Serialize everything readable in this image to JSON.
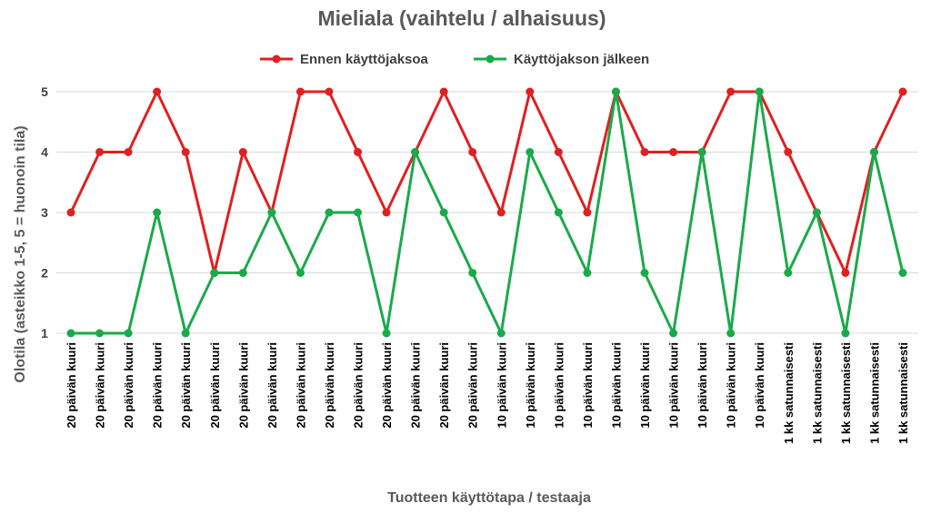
{
  "chart_data": {
    "type": "line",
    "title": "Mieliala (vaihtelu / alhaisuus)",
    "xlabel": "Tuotteen käyttötapa / testaaja",
    "ylabel": "Olotila (asteikko 1-5, 5 = huonoin tila)",
    "ylim": [
      1,
      5
    ],
    "yticks": [
      1,
      2,
      3,
      4,
      5
    ],
    "grid": true,
    "legend": "top",
    "categories": [
      "20 päivän kuuri",
      "20 päivän kuuri",
      "20 päivän kuuri",
      "20 päivän kuuri",
      "20 päivän kuuri",
      "20 päivän kuuri",
      "20 päivän kuuri",
      "20 päivän kuuri",
      "20 päivän kuuri",
      "20 päivän kuuri",
      "20 päivän kuuri",
      "20 päivän kuuri",
      "20 päivän kuuri",
      "20 päivän kuuri",
      "20 päivän kuuri",
      "10 päivän kuuri",
      "10 päivän kuuri",
      "10 päivän kuuri",
      "10 päivän kuuri",
      "10 päivän kuuri",
      "10 päivän kuuri",
      "10 päivän kuuri",
      "10 päivän kuuri",
      "10 päivän kuuri",
      "10 päivän kuuri",
      "1 kk satunnaisesti",
      "1 kk satunnaisesti",
      "1 kk satunnaisesti",
      "1 kk satunnaisesti",
      "1 kk satunnaisesti"
    ],
    "series": [
      {
        "name": "Ennen käyttöjaksoa",
        "color": "#e02020",
        "values": [
          3,
          4,
          4,
          5,
          4,
          2,
          4,
          3,
          5,
          5,
          4,
          3,
          4,
          5,
          4,
          3,
          5,
          4,
          3,
          5,
          4,
          4,
          4,
          5,
          5,
          4,
          3,
          2,
          4,
          5
        ]
      },
      {
        "name": "Käyttöjakson jälkeen",
        "color": "#1aaa4a",
        "values": [
          1,
          1,
          1,
          3,
          1,
          2,
          2,
          3,
          2,
          3,
          3,
          1,
          4,
          3,
          2,
          1,
          4,
          3,
          2,
          5,
          2,
          1,
          4,
          1,
          5,
          2,
          3,
          1,
          4,
          2
        ]
      }
    ]
  }
}
